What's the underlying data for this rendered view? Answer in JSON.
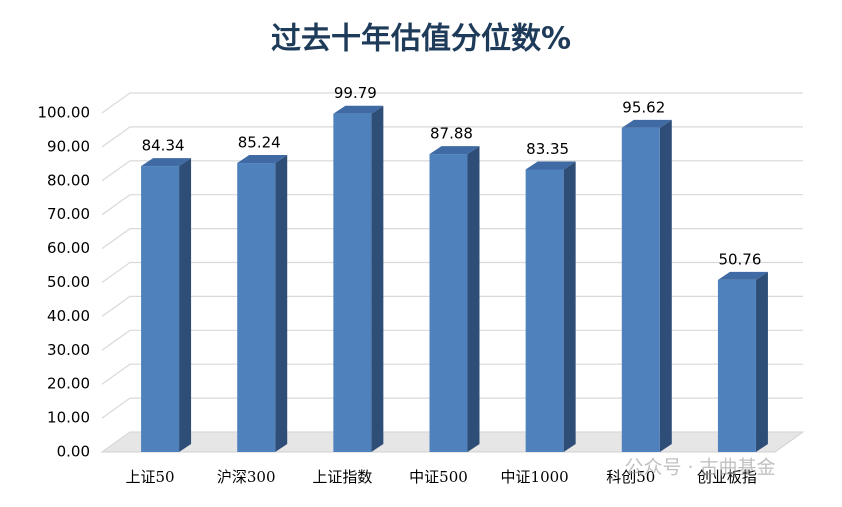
{
  "chart_data": {
    "type": "bar3d",
    "title": "过去十年估值分位数%",
    "categories": [
      "上证50",
      "沪深300",
      "上证指数",
      "中证500",
      "中证1000",
      "科创50",
      "创业板指"
    ],
    "values": [
      84.34,
      85.24,
      99.79,
      87.88,
      83.35,
      95.62,
      50.76
    ],
    "color": "#4f81bd",
    "ylim": [
      0,
      100
    ],
    "yticks": [
      {
        "value": 0,
        "label": "0.00"
      },
      {
        "value": 10,
        "label": "10.00"
      },
      {
        "value": 20,
        "label": "20.00"
      },
      {
        "value": 30,
        "label": "30.00"
      },
      {
        "value": 40,
        "label": "40.00"
      },
      {
        "value": 50,
        "label": "50.00"
      },
      {
        "value": 60,
        "label": "60.00"
      },
      {
        "value": 70,
        "label": "70.00"
      },
      {
        "value": 80,
        "label": "80.00"
      },
      {
        "value": 90,
        "label": "90.00"
      },
      {
        "value": 100,
        "label": "100.00"
      }
    ],
    "grid": true,
    "watermark": "公众号 · 古曲基金"
  }
}
